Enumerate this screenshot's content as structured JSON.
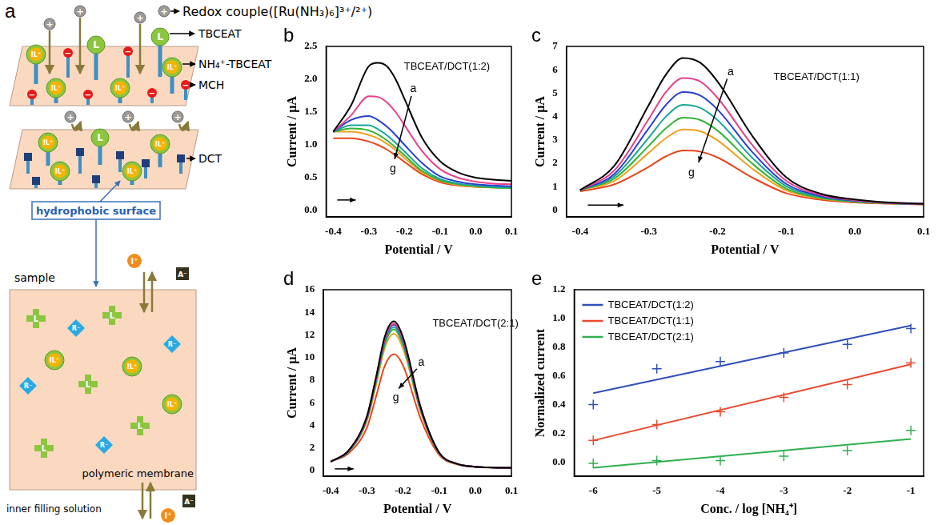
{
  "diagram": {
    "panel_label": "a",
    "redox_label": "Redox couple([Ru(NH₃)₆]³⁺/²⁺)",
    "tbceat_label": "TBCEAT",
    "complex_label": "NH₄⁺-TBCEAT",
    "mch_label": "MCH",
    "dct_label": "DCT",
    "hydrophobic_label": "hydrophobic surface",
    "sample_label": "sample",
    "membrane_label": "polymeric membrane",
    "inner_label": "inner filling solution",
    "symbols": {
      "redox": "+",
      "ligand": "L",
      "complex": "IL⁺",
      "mch": "−",
      "ion": "I⁺",
      "anion": "A⁻",
      "site": "R⁻"
    }
  },
  "chart_data": [
    {
      "type": "line",
      "panel_label": "b",
      "title": "TBCEAT/DCT(1:2)",
      "x_label": "Potential / V",
      "y_label": "Current / μA",
      "annotations": [
        "a",
        "g"
      ],
      "xlim": [
        -0.42,
        0.1
      ],
      "ylim": [
        -0.1,
        2.5
      ],
      "xticks": [
        -0.4,
        -0.3,
        -0.2,
        -0.1,
        {
          "value": 0,
          "label": "0.0"
        },
        0.1
      ],
      "yticks": [
        {
          "value": 0,
          "label": "0.0"
        },
        0.5,
        {
          "value": 1,
          "label": "1.0"
        },
        1.5,
        {
          "value": 2,
          "label": "2.0"
        },
        2.5
      ],
      "grid": false,
      "x": [
        -0.4,
        -0.35,
        -0.3,
        -0.275,
        -0.25,
        -0.225,
        -0.2,
        -0.15,
        -0.1,
        -0.05,
        0,
        0.05,
        0.1
      ],
      "series": [
        {
          "color": "#000000",
          "values": [
            1.2,
            1.6,
            2.2,
            2.25,
            2.2,
            2.0,
            1.7,
            1.1,
            0.75,
            0.58,
            0.5,
            0.47,
            0.45
          ]
        },
        {
          "color": "#e8408a",
          "values": [
            1.2,
            1.45,
            1.74,
            1.73,
            1.65,
            1.5,
            1.3,
            0.9,
            0.63,
            0.5,
            0.44,
            0.41,
            0.4
          ]
        },
        {
          "color": "#2a3fd0",
          "values": [
            1.2,
            1.38,
            1.44,
            1.38,
            1.28,
            1.15,
            1.0,
            0.72,
            0.52,
            0.44,
            0.4,
            0.38,
            0.37
          ]
        },
        {
          "color": "#1aa59a",
          "values": [
            1.2,
            1.3,
            1.3,
            1.24,
            1.15,
            1.03,
            0.9,
            0.64,
            0.48,
            0.41,
            0.38,
            0.36,
            0.35
          ]
        },
        {
          "color": "#33b533",
          "values": [
            1.2,
            1.25,
            1.22,
            1.16,
            1.07,
            0.96,
            0.84,
            0.6,
            0.46,
            0.4,
            0.37,
            0.35,
            0.34
          ]
        },
        {
          "color": "#f0a01e",
          "values": [
            1.2,
            1.2,
            1.15,
            1.1,
            1.02,
            0.92,
            0.8,
            0.58,
            0.45,
            0.39,
            0.36,
            0.35,
            0.34
          ]
        },
        {
          "color": "#e8461c",
          "values": [
            1.1,
            1.1,
            1.05,
            1.0,
            0.93,
            0.84,
            0.74,
            0.55,
            0.43,
            0.38,
            0.36,
            0.35,
            0.34
          ]
        }
      ]
    },
    {
      "type": "line",
      "panel_label": "c",
      "title": "TBCEAT/DCT(1:1)",
      "x_label": "Potential / V",
      "y_label": "Current / μA",
      "annotations": [
        "a",
        "g"
      ],
      "xlim": [
        -0.42,
        0.1
      ],
      "ylim": [
        -0.3,
        7
      ],
      "xticks": [
        -0.4,
        -0.3,
        -0.2,
        -0.1,
        {
          "value": 0,
          "label": "0.0"
        },
        0.1
      ],
      "yticks": [
        0,
        1,
        2,
        3,
        4,
        5,
        6,
        7
      ],
      "grid": false,
      "x": [
        -0.4,
        -0.35,
        -0.3,
        -0.275,
        -0.25,
        -0.225,
        -0.2,
        -0.15,
        -0.1,
        -0.05,
        0,
        0.05,
        0.1
      ],
      "series": [
        {
          "color": "#000000",
          "values": [
            0.85,
            1.9,
            4.5,
            5.8,
            6.5,
            6.3,
            5.5,
            3.2,
            1.4,
            0.7,
            0.45,
            0.32,
            0.27
          ]
        },
        {
          "color": "#e8408a",
          "values": [
            0.85,
            1.7,
            3.9,
            5.05,
            5.65,
            5.5,
            4.8,
            2.8,
            1.25,
            0.65,
            0.42,
            0.31,
            0.26
          ]
        },
        {
          "color": "#2a3fd0",
          "values": [
            0.85,
            1.55,
            3.5,
            4.5,
            5.05,
            4.9,
            4.3,
            2.5,
            1.12,
            0.6,
            0.4,
            0.3,
            0.26
          ]
        },
        {
          "color": "#1aa59a",
          "values": [
            0.85,
            1.45,
            3.1,
            4.0,
            4.5,
            4.37,
            3.85,
            2.25,
            1.02,
            0.56,
            0.38,
            0.3,
            0.25
          ]
        },
        {
          "color": "#33b533",
          "values": [
            0.85,
            1.35,
            2.75,
            3.5,
            3.95,
            3.85,
            3.4,
            2.0,
            0.92,
            0.52,
            0.36,
            0.29,
            0.25
          ]
        },
        {
          "color": "#f0a01e",
          "values": [
            0.85,
            1.25,
            2.45,
            3.08,
            3.45,
            3.37,
            2.98,
            1.78,
            0.84,
            0.49,
            0.35,
            0.28,
            0.24
          ]
        },
        {
          "color": "#e8461c",
          "values": [
            0.8,
            1.1,
            1.85,
            2.3,
            2.55,
            2.5,
            2.25,
            1.4,
            0.72,
            0.44,
            0.32,
            0.27,
            0.24
          ]
        }
      ]
    },
    {
      "type": "line",
      "panel_label": "d",
      "title": "TBCEAT/DCT(2:1)",
      "x_label": "Potential / V",
      "y_label": "Current / μA",
      "annotations": [
        "a",
        "g"
      ],
      "xlim": [
        -0.42,
        0.1
      ],
      "ylim": [
        -0.5,
        16
      ],
      "xticks": [
        -0.4,
        -0.3,
        -0.2,
        -0.1,
        {
          "value": 0,
          "label": "0.0"
        },
        0.1
      ],
      "yticks": [
        0,
        2,
        4,
        6,
        8,
        10,
        12,
        14,
        16
      ],
      "grid": false,
      "x": [
        -0.4,
        -0.35,
        -0.3,
        -0.275,
        -0.25,
        -0.225,
        -0.2,
        -0.15,
        -0.1,
        -0.05,
        0,
        0.05,
        0.1
      ],
      "series": [
        {
          "color": "#000000",
          "values": [
            0.8,
            1.8,
            4.8,
            8.2,
            11.9,
            13.2,
            11.8,
            5.5,
            1.6,
            0.6,
            0.35,
            0.28,
            0.25
          ]
        },
        {
          "color": "#e8408a",
          "values": [
            0.8,
            1.8,
            4.7,
            8.1,
            11.7,
            13.0,
            11.6,
            5.4,
            1.6,
            0.6,
            0.35,
            0.28,
            0.25
          ]
        },
        {
          "color": "#2a3fd0",
          "values": [
            0.8,
            1.75,
            4.65,
            8.0,
            11.6,
            12.9,
            11.5,
            5.35,
            1.58,
            0.6,
            0.35,
            0.28,
            0.25
          ]
        },
        {
          "color": "#1aa59a",
          "values": [
            0.8,
            1.75,
            4.6,
            7.9,
            11.4,
            12.7,
            11.3,
            5.3,
            1.56,
            0.6,
            0.35,
            0.28,
            0.25
          ]
        },
        {
          "color": "#33b533",
          "values": [
            0.8,
            1.7,
            4.5,
            7.75,
            11.2,
            12.5,
            11.1,
            5.2,
            1.54,
            0.6,
            0.35,
            0.28,
            0.25
          ]
        },
        {
          "color": "#f0a01e",
          "values": [
            0.8,
            1.7,
            4.4,
            7.5,
            10.9,
            12.1,
            10.8,
            5.1,
            1.52,
            0.58,
            0.34,
            0.28,
            0.25
          ]
        },
        {
          "color": "#e8461c",
          "values": [
            0.8,
            1.55,
            3.8,
            6.5,
            9.3,
            10.3,
            9.3,
            4.5,
            1.4,
            0.55,
            0.33,
            0.27,
            0.24
          ]
        }
      ]
    },
    {
      "type": "scatter",
      "panel_label": "e",
      "x_label": "Conc. / log [NH₄⁺]",
      "y_label": "Normalized current",
      "xlim": [
        -6.3,
        -0.8
      ],
      "ylim": [
        -0.1,
        1.2
      ],
      "xticks": [
        -6,
        -5,
        -4,
        -3,
        -2,
        -1
      ],
      "yticks": [
        {
          "value": 0,
          "label": "0.0"
        },
        0.2,
        0.4,
        0.6,
        0.8,
        {
          "value": 1,
          "label": "1.0"
        },
        1.2
      ],
      "grid": false,
      "legend": "upper left",
      "series": [
        {
          "name": "TBCEAT/DCT(1:2)",
          "color": "#3050b8",
          "marker": "cross",
          "x": [
            -6,
            -5,
            -4,
            -3,
            -2,
            -1
          ],
          "values": [
            0.4,
            0.65,
            0.7,
            0.76,
            0.82,
            0.93
          ],
          "fit": {
            "x": [
              -6,
              -1
            ],
            "values": [
              0.48,
              0.95
            ]
          }
        },
        {
          "name": "TBCEAT/DCT(1:1)",
          "color": "#e84a30",
          "marker": "cross",
          "x": [
            -6,
            -5,
            -4,
            -3,
            -2,
            -1
          ],
          "values": [
            0.15,
            0.26,
            0.35,
            0.45,
            0.54,
            0.69
          ],
          "fit": {
            "x": [
              -6,
              -1
            ],
            "values": [
              0.15,
              0.68
            ]
          }
        },
        {
          "name": "TBCEAT/DCT(2:1)",
          "color": "#30b050",
          "marker": "cross",
          "x": [
            -6,
            -5,
            -4,
            -3,
            -2,
            -1
          ],
          "values": [
            -0.01,
            0.01,
            0.01,
            0.04,
            0.08,
            0.22
          ],
          "fit": {
            "x": [
              -6,
              -1
            ],
            "values": [
              -0.04,
              0.16
            ]
          }
        }
      ]
    }
  ]
}
